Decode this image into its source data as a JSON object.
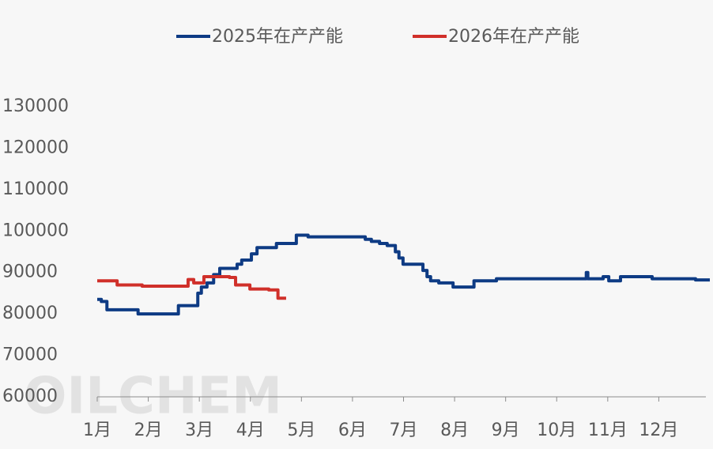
{
  "chart_data": {
    "type": "line",
    "step": "after",
    "watermark": "OILCHEM",
    "xlim": [
      1,
      13
    ],
    "ylim": [
      60000,
      130000
    ],
    "yticks": [
      60000,
      70000,
      80000,
      90000,
      100000,
      110000,
      120000,
      130000
    ],
    "xticks": [
      {
        "value": 1,
        "label": "1月"
      },
      {
        "value": 2,
        "label": "2月"
      },
      {
        "value": 3,
        "label": "3月"
      },
      {
        "value": 4,
        "label": "4月"
      },
      {
        "value": 5,
        "label": "5月"
      },
      {
        "value": 6,
        "label": "6月"
      },
      {
        "value": 7,
        "label": "7月"
      },
      {
        "value": 8,
        "label": "8月"
      },
      {
        "value": 9,
        "label": "9月"
      },
      {
        "value": 10,
        "label": "10月"
      },
      {
        "value": 11,
        "label": "11月"
      },
      {
        "value": 12,
        "label": "12月"
      }
    ],
    "series": [
      {
        "name": "2025年在产产能",
        "color": "#0e3b84",
        "x": [
          1.0,
          1.08,
          1.19,
          1.8,
          2.59,
          2.97,
          3.04,
          3.15,
          3.28,
          3.4,
          3.74,
          3.83,
          4.02,
          4.13,
          4.51,
          4.9,
          5.13,
          6.25,
          6.37,
          6.53,
          6.68,
          6.84,
          6.91,
          6.99,
          7.38,
          7.46,
          7.53,
          7.69,
          7.97,
          8.38,
          8.82,
          10.58,
          10.61,
          10.91,
          11.02,
          11.25,
          11.87,
          12.72,
          13.0
        ],
        "values": [
          83500,
          83000,
          81000,
          80000,
          82000,
          85000,
          86500,
          87500,
          89500,
          91000,
          92000,
          93000,
          94500,
          96000,
          97000,
          99000,
          98600,
          98000,
          97500,
          97000,
          96500,
          95000,
          93500,
          92000,
          90500,
          89000,
          88000,
          87500,
          86500,
          88000,
          88500,
          90000,
          88500,
          89000,
          88000,
          89000,
          88500,
          88200,
          88200
        ]
      },
      {
        "name": "2026年在产产能",
        "color": "#d0302a",
        "x": [
          1.0,
          1.39,
          1.88,
          2.78,
          2.89,
          3.09,
          3.59,
          3.71,
          3.99,
          4.36,
          4.54,
          4.7
        ],
        "values": [
          88000,
          87000,
          86700,
          88300,
          87500,
          89000,
          88800,
          87000,
          86000,
          85800,
          83800,
          83800
        ]
      }
    ]
  }
}
